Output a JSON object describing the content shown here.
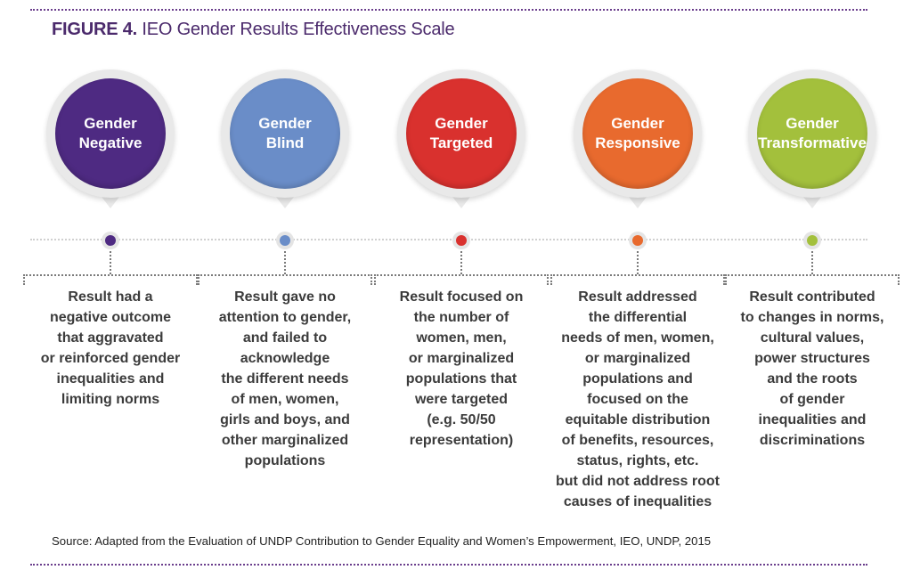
{
  "figure": {
    "label": "FIGURE 4.",
    "title": "IEO Gender Results Effectiveness Scale"
  },
  "stages": [
    {
      "name": "Gender\nNegative",
      "color": "#4e2a82",
      "description": "Result had a\nnegative outcome\nthat aggravated\nor reinforced gender\ninequalities and\nlimiting norms"
    },
    {
      "name": "Gender\nBlind",
      "color": "#6a8dc8",
      "description": "Result gave no\nattention to gender,\nand failed to\nacknowledge\nthe different needs\nof men, women,\ngirls and boys, and\nother marginalized\npopulations"
    },
    {
      "name": "Gender\nTargeted",
      "color": "#d9312e",
      "description": "Result focused on\nthe number of\nwomen, men,\nor marginalized\npopulations that\nwere targeted\n(e.g. 50/50\nrepresentation)"
    },
    {
      "name": "Gender\nResponsive",
      "color": "#e86a2e",
      "description": "Result addressed\nthe differential\nneeds of men, women,\nor marginalized\npopulations and\nfocused on the\nequitable distribution\nof benefits, resources,\nstatus, rights, etc.\nbut did not address root\ncauses of inequalities"
    },
    {
      "name": "Gender\nTransformative",
      "color": "#a3c03c",
      "description": "Result contributed\nto changes in norms,\ncultural values,\npower structures\nand the roots\nof gender\ninequalities and\ndiscriminations"
    }
  ],
  "source": "Source: Adapted from the Evaluation of UNDP Contribution to Gender Equality and Women’s Empowerment, IEO, UNDP, 2015"
}
